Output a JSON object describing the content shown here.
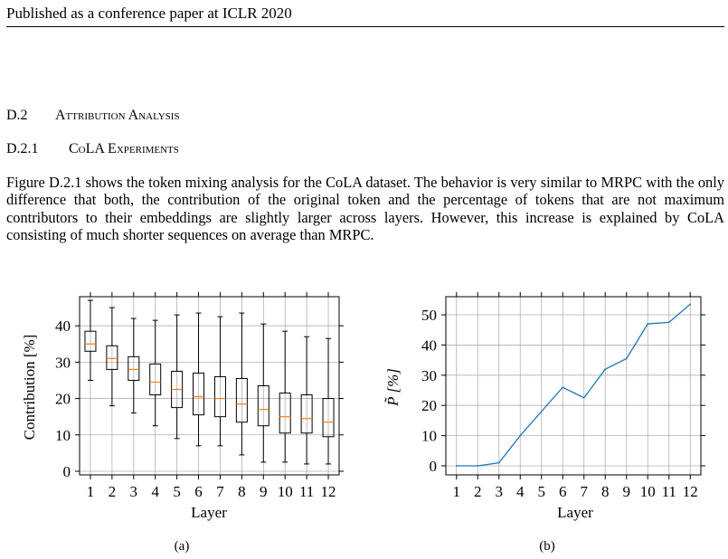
{
  "header": {
    "text": "Published as a conference paper at ICLR 2020"
  },
  "section": {
    "number": "D.2",
    "title": "Attribution Analysis"
  },
  "subsection": {
    "number": "D.2.1",
    "title": "CoLA Experiments"
  },
  "paragraph": "Figure D.2.1 shows the token mixing analysis for the CoLA dataset. The behavior is very similar to MRPC with the only difference that both, the contribution of the original token and the percentage of tokens that are not maximum contributors to their embeddings are slightly larger across layers. However, this increase is explained by CoLA consisting of much shorter sequences on average than MRPC.",
  "colors": {
    "median": "#ff7f0e",
    "line": "#1f77b4",
    "grid": "#b0b0b0"
  },
  "chart_data": [
    {
      "type": "box",
      "caption": "(a)",
      "xlabel": "Layer",
      "ylabel": "Contribution [%]",
      "categories": [
        "1",
        "2",
        "3",
        "4",
        "5",
        "6",
        "7",
        "8",
        "9",
        "10",
        "11",
        "12"
      ],
      "ylim": [
        -1,
        48
      ],
      "yticks": [
        "0",
        "10",
        "20",
        "30",
        "40"
      ],
      "grid": true,
      "boxes": [
        {
          "whisker_low": 25,
          "q1": 33,
          "median": 35,
          "q3": 38.5,
          "whisker_high": 47
        },
        {
          "whisker_low": 18,
          "q1": 28,
          "median": 31,
          "q3": 34.5,
          "whisker_high": 45
        },
        {
          "whisker_low": 16,
          "q1": 25,
          "median": 28,
          "q3": 31.5,
          "whisker_high": 42
        },
        {
          "whisker_low": 12.5,
          "q1": 21,
          "median": 24.5,
          "q3": 29.5,
          "whisker_high": 41.5
        },
        {
          "whisker_low": 9,
          "q1": 17.5,
          "median": 22.5,
          "q3": 27.5,
          "whisker_high": 43
        },
        {
          "whisker_low": 7,
          "q1": 15.5,
          "median": 20.5,
          "q3": 27,
          "whisker_high": 43.5
        },
        {
          "whisker_low": 7,
          "q1": 15,
          "median": 20,
          "q3": 26,
          "whisker_high": 42.5
        },
        {
          "whisker_low": 4.5,
          "q1": 13.5,
          "median": 18.5,
          "q3": 25.5,
          "whisker_high": 43.5
        },
        {
          "whisker_low": 2.5,
          "q1": 12.5,
          "median": 17,
          "q3": 23.5,
          "whisker_high": 40.5
        },
        {
          "whisker_low": 2.5,
          "q1": 10.5,
          "median": 15,
          "q3": 21.5,
          "whisker_high": 38.5
        },
        {
          "whisker_low": 2,
          "q1": 10.5,
          "median": 14.5,
          "q3": 21,
          "whisker_high": 37
        },
        {
          "whisker_low": 2,
          "q1": 9.5,
          "median": 13.5,
          "q3": 20,
          "whisker_high": 36.5
        }
      ]
    },
    {
      "type": "line",
      "caption": "(b)",
      "xlabel": "Layer",
      "ylabel": "P̃ [%]",
      "x": [
        1,
        2,
        3,
        4,
        5,
        6,
        7,
        8,
        9,
        10,
        11,
        12
      ],
      "xticks": [
        "1",
        "2",
        "3",
        "4",
        "5",
        "6",
        "7",
        "8",
        "9",
        "10",
        "11",
        "12"
      ],
      "ylim": [
        -3,
        56
      ],
      "yticks": [
        "0",
        "10",
        "20",
        "30",
        "40",
        "50"
      ],
      "grid": true,
      "series": [
        {
          "values": [
            0,
            0,
            1,
            10,
            18,
            26,
            22.5,
            32,
            35.5,
            47,
            47.5,
            53.5
          ]
        }
      ]
    }
  ]
}
